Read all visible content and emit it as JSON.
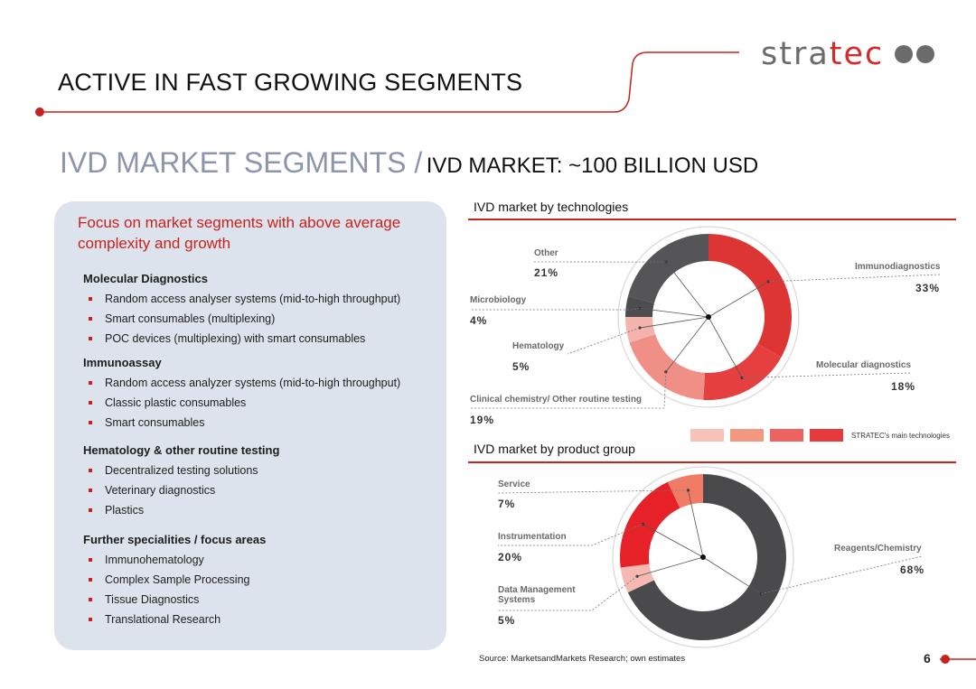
{
  "header": {
    "title": "ACTIVE IN FAST GROWING SEGMENTS",
    "logo_gray": "stra",
    "logo_red": "tec",
    "subtitle_main": "IVD MARKET SEGMENTS /",
    "subtitle_secondary": "IVD MARKET:  ~100 BILLION USD"
  },
  "focus": {
    "heading": "Focus on market segments with above average complexity and growth",
    "segments": [
      {
        "title": "Molecular Diagnostics",
        "items": [
          "Random access analyser systems (mid-to-high throughput)",
          "Smart consumables (multiplexing)",
          "POC devices (multiplexing) with smart consumables"
        ]
      },
      {
        "title": "Immunoassay",
        "items": [
          "Random access analyzer systems (mid-to-high throughput)",
          "Classic plastic consumables",
          "Smart consumables"
        ]
      },
      {
        "title": "Hematology & other routine testing",
        "items": [
          "Decentralized testing solutions",
          "Veterinary diagnostics",
          "Plastics"
        ]
      },
      {
        "title": "Further specialities / focus areas",
        "items": [
          "Immunohematology",
          "Complex Sample Processing",
          "Tissue Diagnostics",
          "Translational Research"
        ]
      }
    ]
  },
  "chart_data": [
    {
      "type": "pie",
      "variant": "donut",
      "title": "IVD market by technologies",
      "categories": [
        "Immunodiagnostics",
        "Molecular diagnostics",
        "Clinical chemistry/ Other routine testing",
        "Hematology",
        "Microbiology",
        "Other"
      ],
      "values": [
        33,
        18,
        19,
        5,
        4,
        21
      ],
      "value_labels": [
        "33%",
        "18%",
        "19%",
        "5%",
        "4%",
        "21%"
      ],
      "colors": [
        "#dd3534",
        "#e5403f",
        "#ef8f86",
        "#f4b4ad",
        "#4d4d4f",
        "#555557"
      ],
      "legend_swatches": [
        "#f9c2b8",
        "#f29880",
        "#ec6360",
        "#e63a3c"
      ],
      "legend_note": "STRATEC's main technologies"
    },
    {
      "type": "pie",
      "variant": "donut",
      "title": "IVD market by product group",
      "categories": [
        "Reagents/Chemistry",
        "Data Management Systems",
        "Instrumentation",
        "Service"
      ],
      "values": [
        68,
        5,
        20,
        7
      ],
      "value_labels": [
        "68%",
        "5%",
        "20%",
        "7%"
      ],
      "colors": [
        "#4a4a4c",
        "#f6b8b0",
        "#e62128",
        "#f17c65"
      ]
    }
  ],
  "footer": {
    "source": "Source: MarketsandMarkets Research; own estimates",
    "page_number": "6"
  }
}
